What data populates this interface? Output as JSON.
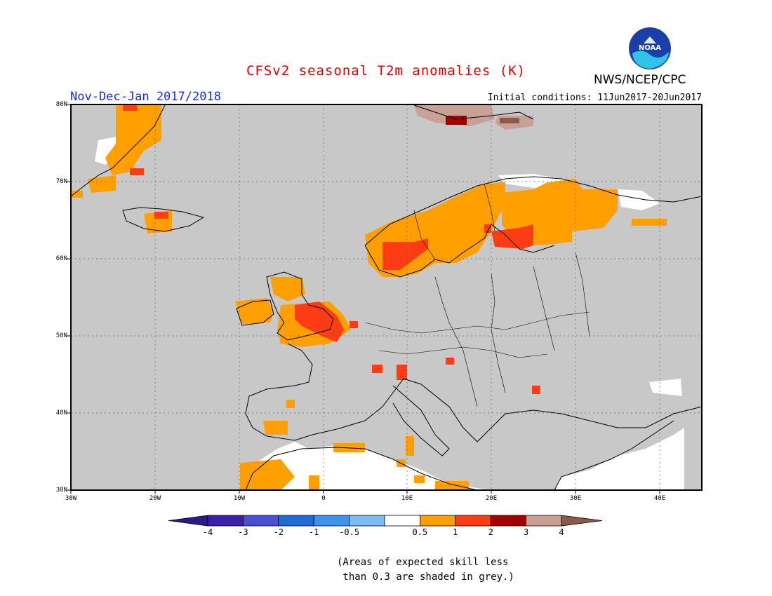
{
  "header": {
    "title": "CFSv2 seasonal T2m anomalies (K)",
    "org": "NWS/NCEP/CPC",
    "logo_text": "NOAA",
    "period": "Nov-Dec-Jan 2017/2018",
    "initial_conditions": "Initial conditions: 11Jun2017-20Jun2017"
  },
  "map": {
    "lat_labels": [
      "80N",
      "70N",
      "60N",
      "50N",
      "40N",
      "30N"
    ],
    "lon_labels": [
      "30W",
      "20W",
      "10W",
      "0",
      "10E",
      "20E",
      "30E",
      "40E"
    ],
    "extent": {
      "lon": [
        -30,
        45
      ],
      "lat": [
        30,
        80
      ]
    },
    "background_color": "#c8c8c8",
    "grid": "dotted"
  },
  "colorbar": {
    "labels": [
      "-4",
      "-3",
      "-2",
      "-1",
      "-0.5",
      "0.5",
      "1",
      "2",
      "3",
      "4"
    ],
    "colors": [
      "#3d1fb0",
      "#4a4fd6",
      "#1f6bd8",
      "#3d93ef",
      "#7cbcf5",
      "#ffffff",
      "#ffa000",
      "#ff3c14",
      "#a50000",
      "#c8a096"
    ],
    "end_colors": {
      "low": "#2a1a8a",
      "high": "#8b5a4a"
    }
  },
  "note": {
    "line1": "(Areas of expected skill less",
    "line2": " than 0.3 are shaded in grey.)"
  }
}
